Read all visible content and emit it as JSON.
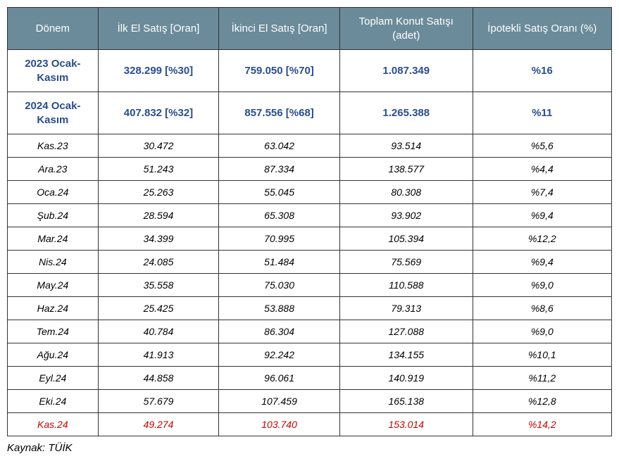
{
  "table": {
    "headers": {
      "period": "Dönem",
      "first_hand": "İlk El Satış [Oran]",
      "second_hand": "İkinci El Satış [Oran]",
      "total": "Toplam Konut Satışı (adet)",
      "mortgage_rate": "İpotekli Satış Oranı (%)"
    },
    "summary_rows": [
      {
        "period": "2023 Ocak-Kasım",
        "first_hand": "328.299 [%30]",
        "second_hand": "759.050 [%70]",
        "total": "1.087.349",
        "mortgage_rate": "%16"
      },
      {
        "period": "2024 Ocak-Kasım",
        "first_hand": "407.832 [%32]",
        "second_hand": "857.556 [%68]",
        "total": "1.265.388",
        "mortgage_rate": "%11"
      }
    ],
    "monthly_rows": [
      {
        "period": "Kas.23",
        "first_hand": "30.472",
        "second_hand": "63.042",
        "total": "93.514",
        "mortgage_rate": "%5,6"
      },
      {
        "period": "Ara.23",
        "first_hand": "51.243",
        "second_hand": "87.334",
        "total": "138.577",
        "mortgage_rate": "%4,4"
      },
      {
        "period": "Oca.24",
        "first_hand": "25.263",
        "second_hand": "55.045",
        "total": "80.308",
        "mortgage_rate": "%7,4"
      },
      {
        "period": "Şub.24",
        "first_hand": "28.594",
        "second_hand": "65.308",
        "total": "93.902",
        "mortgage_rate": "%9,4"
      },
      {
        "period": "Mar.24",
        "first_hand": "34.399",
        "second_hand": "70.995",
        "total": "105.394",
        "mortgage_rate": "%12,2"
      },
      {
        "period": "Nis.24",
        "first_hand": "24.085",
        "second_hand": "51.484",
        "total": "75.569",
        "mortgage_rate": "%9,4"
      },
      {
        "period": "May.24",
        "first_hand": "35.558",
        "second_hand": "75.030",
        "total": "110.588",
        "mortgage_rate": "%9,0"
      },
      {
        "period": "Haz.24",
        "first_hand": "25.425",
        "second_hand": "53.888",
        "total": "79.313",
        "mortgage_rate": "%8,6"
      },
      {
        "period": "Tem.24",
        "first_hand": "40.784",
        "second_hand": "86.304",
        "total": "127.088",
        "mortgage_rate": "%9,0"
      },
      {
        "period": "Ağu.24",
        "first_hand": "41.913",
        "second_hand": "92.242",
        "total": "134.155",
        "mortgage_rate": "%10,1"
      },
      {
        "period": "Eyl.24",
        "first_hand": "44.858",
        "second_hand": "96.061",
        "total": "140.919",
        "mortgage_rate": "%11,2"
      },
      {
        "period": "Eki.24",
        "first_hand": "57.679",
        "second_hand": "107.459",
        "total": "165.138",
        "mortgage_rate": "%12,8"
      }
    ],
    "highlight_row": {
      "period": "Kas.24",
      "first_hand": "49.274",
      "second_hand": "103.740",
      "total": "153.014",
      "mortgage_rate": "%14,2"
    }
  },
  "source_label": "Kaynak: TÜİK",
  "styling": {
    "header_bg": "#6b8b9a",
    "header_text_color": "#ffffff",
    "summary_text_color": "#2a4d8f",
    "highlight_text_color": "#cc0000",
    "border_color": "#333333",
    "background_color": "#ffffff",
    "header_fontsize": 15,
    "cell_fontsize": 14,
    "source_fontsize": 15
  }
}
